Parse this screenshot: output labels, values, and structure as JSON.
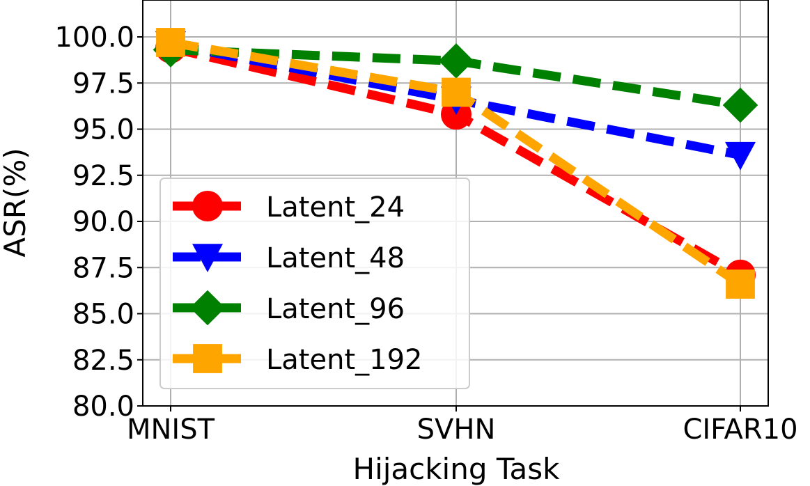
{
  "chart_data": {
    "type": "line",
    "categories": [
      "MNIST",
      "SVHN",
      "CIFAR10"
    ],
    "xlabel": "Hijacking Task",
    "ylabel": "ASR(%)",
    "ylim": [
      80.0,
      102.0
    ],
    "yticks": [
      "80.0",
      "82.5",
      "85.0",
      "87.5",
      "90.0",
      "92.5",
      "95.0",
      "97.5",
      "100.0"
    ],
    "grid": true,
    "legend_position": "lower-left",
    "series": [
      {
        "name": "Latent_24",
        "values": [
          99.4,
          95.8,
          87.1
        ],
        "color": "#ff0000",
        "marker": "circle"
      },
      {
        "name": "Latent_48",
        "values": [
          99.6,
          96.6,
          93.6
        ],
        "color": "#0000ff",
        "marker": "triangle-down"
      },
      {
        "name": "Latent_96",
        "values": [
          99.3,
          98.7,
          96.3
        ],
        "color": "#008000",
        "marker": "diamond"
      },
      {
        "name": "Latent_192",
        "values": [
          99.7,
          97.0,
          86.6
        ],
        "color": "#ffa500",
        "marker": "square"
      }
    ]
  }
}
